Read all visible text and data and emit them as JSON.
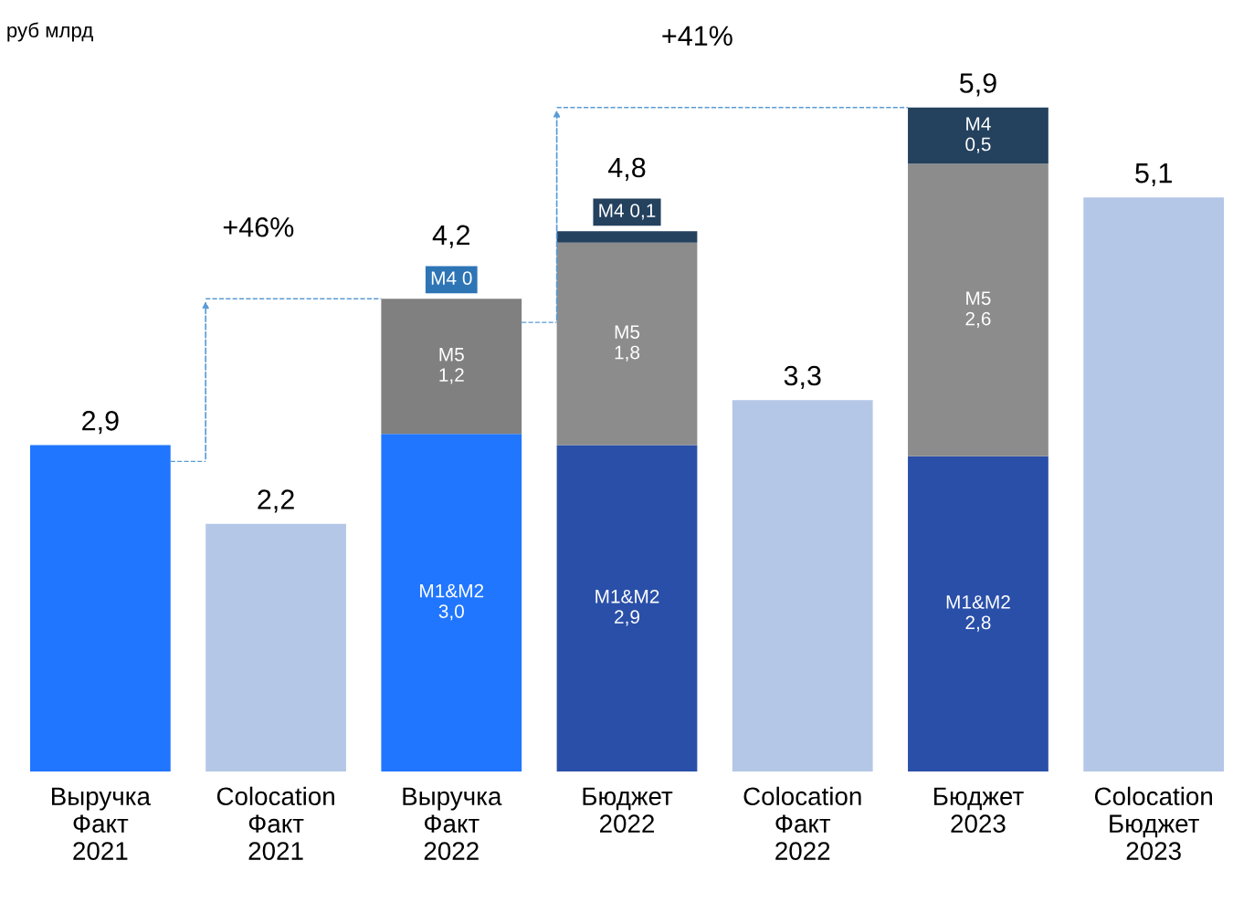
{
  "chart_data": {
    "type": "bar",
    "stacked": true,
    "categories": [
      "Выручка\nФакт\n2021",
      "Colocation\nФакт\n2021",
      "Выручка\nФакт\n2022",
      "Бюджет\n2022",
      "Colocation\nФакт\n2022",
      "Бюджет\n2023",
      "Colocation\nБюджет\n2023"
    ],
    "series": [
      {
        "colors": [
          "#2176ff",
          null,
          "#2176ff",
          "#2a4fa8",
          null,
          "#2a4fa8",
          null
        ],
        "values": [
          2.9,
          null,
          3.0,
          2.9,
          null,
          2.8,
          null
        ],
        "value_labels": [
          null,
          null,
          "M1&M2\n3,0",
          "M1&M2\n2,9",
          null,
          "M1&M2\n2,8",
          null
        ]
      },
      {
        "color": "#b4c7e7",
        "values": [
          null,
          2.2,
          null,
          null,
          3.3,
          null,
          5.1
        ]
      },
      {
        "colors": [
          null,
          null,
          "#808080",
          "#8c8c8c",
          null,
          "#8c8c8c",
          null
        ],
        "values": [
          null,
          null,
          1.2,
          1.8,
          null,
          2.6,
          null
        ],
        "value_labels": [
          null,
          null,
          "M5\n1,2",
          "M5\n1,8",
          null,
          "M5\n2,6",
          null
        ]
      },
      {
        "colors": [
          null,
          null,
          "#2e75b6",
          "#24415e",
          null,
          "#24415e",
          null
        ],
        "values": [
          null,
          null,
          0,
          0.1,
          null,
          0.5,
          null
        ],
        "value_labels": [
          null,
          null,
          "M4 0",
          "M4 0,1",
          null,
          "M4\n0,5",
          null
        ]
      }
    ],
    "totals": [
      "2,9",
      "2,2",
      "4,2",
      "4,8",
      "3,3",
      "5,9",
      "5,1"
    ],
    "annotations": [
      "руб млрд",
      "+46%",
      "+41%"
    ],
    "legend": false,
    "grid": false
  }
}
